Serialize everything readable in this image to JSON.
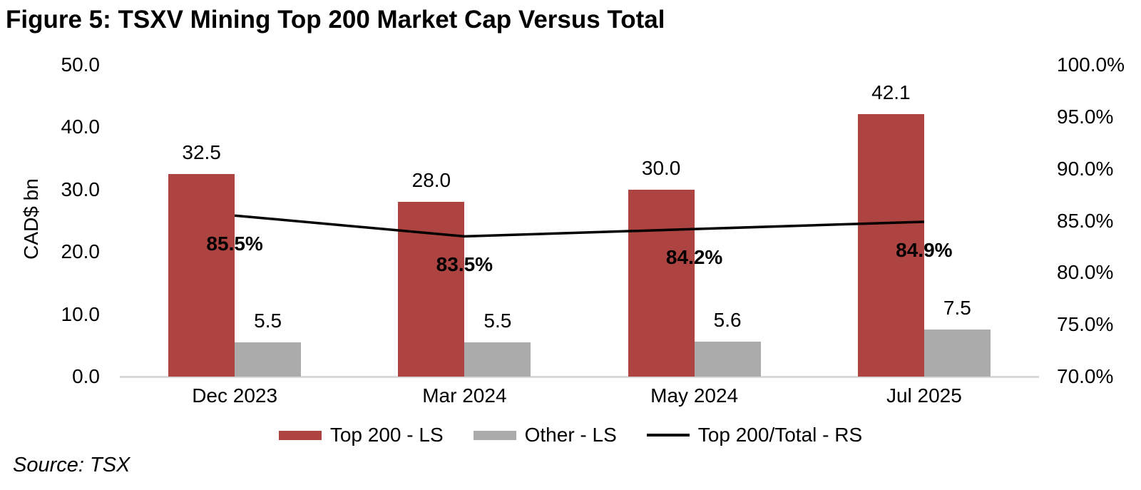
{
  "title": "Figure 5: TSXV Mining Top 200 Market Cap Versus Total",
  "source": "Source: TSX",
  "colors": {
    "top200_bar": "#AE4442",
    "other_bar": "#ABABAB",
    "ratio_line": "#000000",
    "axis_line": "#D9D9D9",
    "text": "#000000"
  },
  "chart_data": {
    "type": "bar",
    "subtype": "grouped bars with secondary-axis line",
    "title": "Figure 5: TSXV Mining Top 200 Market Cap Versus Total",
    "categories": [
      "Dec 2023",
      "Mar 2024",
      "May 2024",
      "Jul 2025"
    ],
    "series": [
      {
        "name": "Top 200 - LS",
        "type": "bar",
        "axis": "left",
        "values": [
          32.5,
          28.0,
          30.0,
          42.1
        ],
        "labels": [
          "32.5",
          "28.0",
          "30.0",
          "42.1"
        ],
        "color": "#AE4442"
      },
      {
        "name": "Other - LS",
        "type": "bar",
        "axis": "left",
        "values": [
          5.5,
          5.5,
          5.6,
          7.5
        ],
        "labels": [
          "5.5",
          "5.5",
          "5.6",
          "7.5"
        ],
        "color": "#ABABAB"
      },
      {
        "name": "Top 200/Total - RS",
        "type": "line",
        "axis": "right",
        "values": [
          85.5,
          83.5,
          84.2,
          84.9
        ],
        "labels": [
          "85.5%",
          "83.5%",
          "84.2%",
          "84.9%"
        ],
        "color": "#000000"
      }
    ],
    "left_axis": {
      "label": "CAD$ bn",
      "min": 0,
      "max": 50,
      "tick_values": [
        0,
        10,
        20,
        30,
        40,
        50
      ],
      "tick_labels": [
        "0.0",
        "10.0",
        "20.0",
        "30.0",
        "40.0",
        "50.0"
      ]
    },
    "right_axis": {
      "label": "",
      "min": 70,
      "max": 100,
      "tick_values": [
        70,
        75,
        80,
        85,
        90,
        95,
        100
      ],
      "tick_labels": [
        "70.0%",
        "75.0%",
        "80.0%",
        "85.0%",
        "90.0%",
        "95.0%",
        "100.0%"
      ]
    },
    "grid": false,
    "legend_position": "bottom"
  },
  "legend": {
    "top200_label": "Top 200 - LS",
    "other_label": "Other - LS",
    "ratio_label": "Top 200/Total - RS"
  }
}
